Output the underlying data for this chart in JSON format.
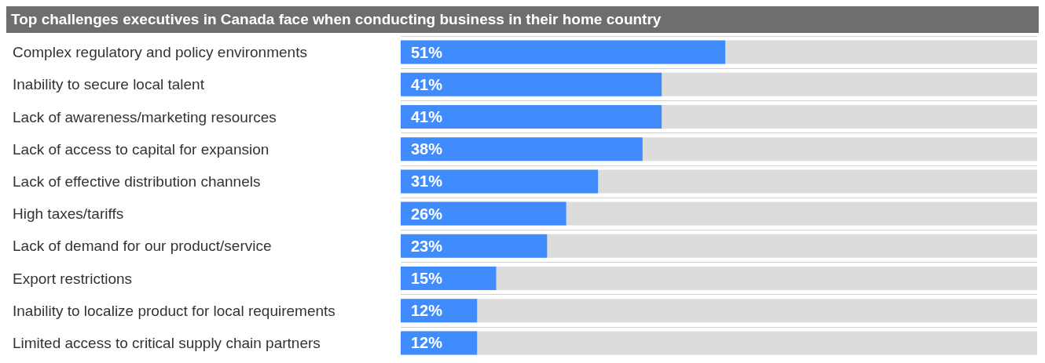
{
  "chart_data": {
    "type": "bar",
    "orientation": "horizontal",
    "title": "Top challenges executives in Canada face when conducting business in their home country",
    "categories": [
      "Complex regulatory and policy environments",
      "Inability to secure local talent",
      "Lack of awareness/marketing resources",
      "Lack of access to capital for expansion",
      "Lack of effective distribution channels",
      "High taxes/tariffs",
      "Lack of demand for our product/service",
      "Export restrictions",
      "Inability to localize product for local requirements",
      "Limited access to critical supply chain partners"
    ],
    "values": [
      51,
      41,
      41,
      38,
      31,
      26,
      23,
      15,
      12,
      12
    ],
    "value_labels": [
      "51%",
      "41%",
      "41%",
      "38%",
      "31%",
      "26%",
      "23%",
      "15%",
      "12%",
      "12%"
    ],
    "color": "#418cfc",
    "xlim": [
      0,
      100
    ],
    "tick_labels": "y",
    "grid": "y"
  }
}
